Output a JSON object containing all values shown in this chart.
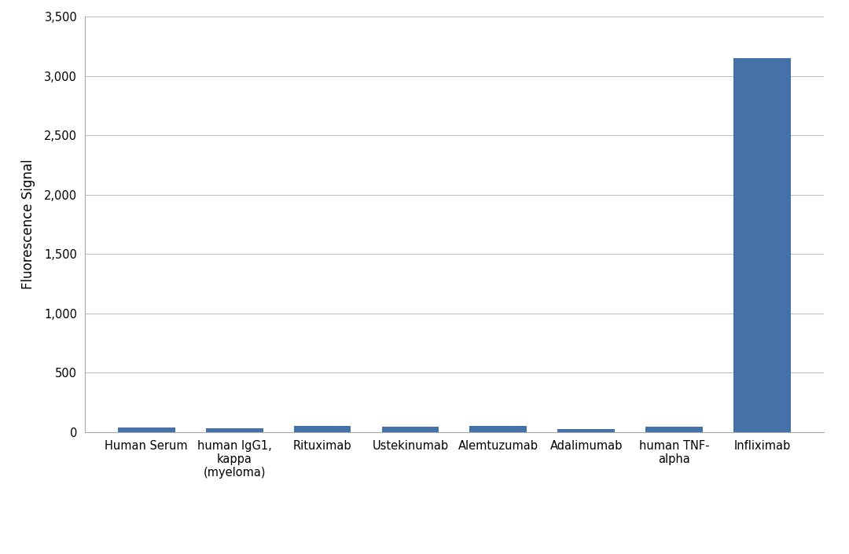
{
  "title": "",
  "ylabel": "Fluorescence Signal",
  "categories": [
    "Human Serum",
    "human IgG1,\nkappa\n(myeloma)",
    "Rituximab",
    "Ustekinumab",
    "Alemtuzumab",
    "Adalimumab",
    "human TNF-\nalpha",
    "Infliximab"
  ],
  "values": [
    38,
    32,
    50,
    47,
    50,
    28,
    44,
    3150
  ],
  "bar_color": "#4472a8",
  "ylim": [
    0,
    3500
  ],
  "yticks": [
    0,
    500,
    1000,
    1500,
    2000,
    2500,
    3000,
    3500
  ],
  "background_color": "#ffffff",
  "grid_color": "#bebebe",
  "axis_label_fontsize": 12,
  "tick_fontsize": 10.5
}
